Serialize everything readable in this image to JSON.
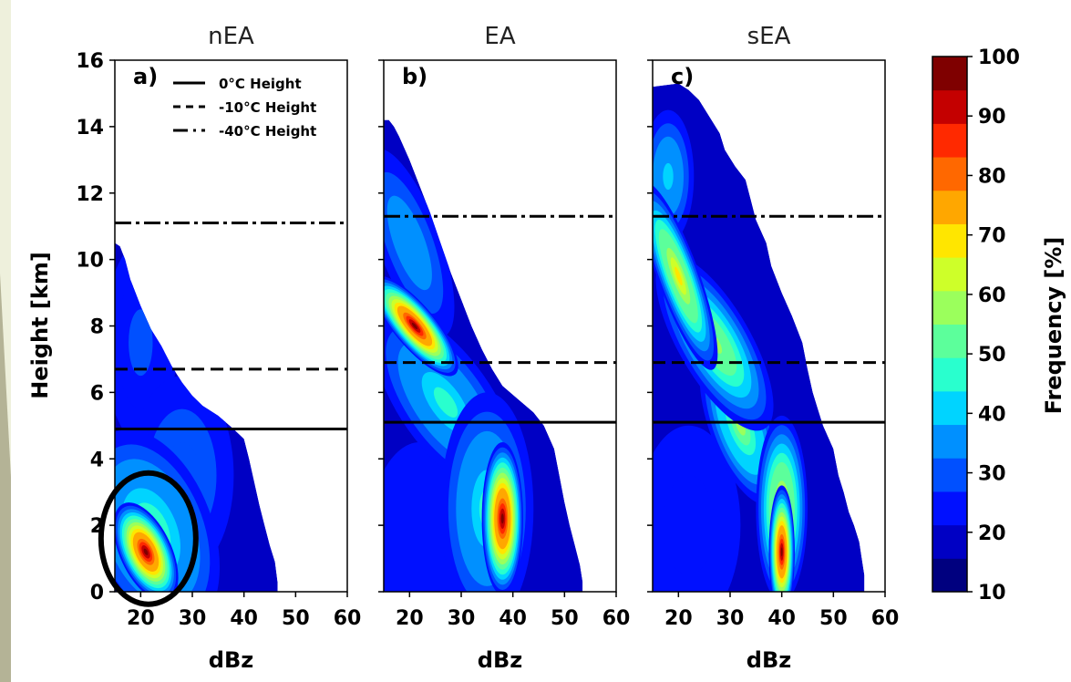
{
  "chart_data": {
    "type": "heatmap",
    "panels": [
      {
        "id": "nEA",
        "title": "nEA",
        "panel_label": "a)",
        "isotherms": [
          {
            "name": "0°C Height",
            "height_km": 4.9,
            "style": "solid"
          },
          {
            "name": "-10°C Height",
            "height_km": 6.7,
            "style": "dashed"
          },
          {
            "name": "-40°C Height",
            "height_km": 11.1,
            "style": "dashdot"
          }
        ],
        "envelope": [
          [
            15,
            10.5
          ],
          [
            16,
            10.4
          ],
          [
            17,
            10.0
          ],
          [
            18,
            9.4
          ],
          [
            20,
            8.6
          ],
          [
            22,
            7.9
          ],
          [
            24,
            7.4
          ],
          [
            26,
            6.8
          ],
          [
            28,
            6.3
          ],
          [
            30,
            5.9
          ],
          [
            32,
            5.6
          ],
          [
            35,
            5.3
          ],
          [
            38,
            4.9
          ],
          [
            40,
            4.6
          ],
          [
            41,
            4.0
          ],
          [
            42,
            3.3
          ],
          [
            43,
            2.6
          ],
          [
            44,
            2.0
          ],
          [
            45,
            1.4
          ],
          [
            46,
            0.9
          ],
          [
            46.5,
            0.3
          ],
          [
            46.5,
            0
          ],
          [
            15,
            0
          ]
        ],
        "cores": [
          {
            "dbz": 21,
            "height_km": 1.2,
            "dx": 5,
            "dy": 1.6,
            "peak": 100,
            "angle_deg": -25
          },
          {
            "dbz": 22,
            "height_km": 1.8,
            "dx": 12,
            "dy": 3.2,
            "peak": 50,
            "angle_deg": -20
          },
          {
            "dbz": 28,
            "height_km": 3.5,
            "dx": 10,
            "dy": 3.0,
            "peak": 30,
            "angle_deg": 0
          },
          {
            "dbz": 20,
            "height_km": 7.5,
            "dx": 7,
            "dy": 3.0,
            "peak": 25,
            "angle_deg": 0
          }
        ]
      },
      {
        "id": "EA",
        "title": "EA",
        "panel_label": "b)",
        "isotherms": [
          {
            "name": "0°C Height",
            "height_km": 5.1,
            "style": "solid"
          },
          {
            "name": "-10°C Height",
            "height_km": 6.9,
            "style": "dashed"
          },
          {
            "name": "-40°C Height",
            "height_km": 11.3,
            "style": "dashdot"
          }
        ],
        "envelope": [
          [
            15,
            14.2
          ],
          [
            16,
            14.2
          ],
          [
            17,
            14.0
          ],
          [
            18,
            13.7
          ],
          [
            20,
            13.0
          ],
          [
            22,
            12.2
          ],
          [
            24,
            11.4
          ],
          [
            26,
            10.5
          ],
          [
            28,
            9.6
          ],
          [
            30,
            8.8
          ],
          [
            32,
            8.0
          ],
          [
            34,
            7.3
          ],
          [
            36,
            6.7
          ],
          [
            38,
            6.2
          ],
          [
            41,
            5.8
          ],
          [
            44,
            5.4
          ],
          [
            46,
            5.0
          ],
          [
            48,
            4.3
          ],
          [
            49,
            3.5
          ],
          [
            50,
            2.7
          ],
          [
            51,
            2.0
          ],
          [
            52,
            1.4
          ],
          [
            53,
            0.8
          ],
          [
            53.5,
            0.3
          ],
          [
            53.5,
            0
          ],
          [
            15,
            0
          ]
        ],
        "cores": [
          {
            "dbz": 21,
            "height_km": 8.0,
            "dx": 4,
            "dy": 1.9,
            "peak": 100,
            "angle_deg": -40
          },
          {
            "dbz": 38,
            "height_km": 2.2,
            "dx": 4,
            "dy": 2.3,
            "peak": 100,
            "angle_deg": 0
          },
          {
            "dbz": 27,
            "height_km": 5.7,
            "dx": 9,
            "dy": 3.2,
            "peak": 45,
            "angle_deg": -35
          },
          {
            "dbz": 35,
            "height_km": 2.5,
            "dx": 9,
            "dy": 3.5,
            "peak": 45,
            "angle_deg": 0
          },
          {
            "dbz": 20,
            "height_km": 10.5,
            "dx": 6,
            "dy": 3.0,
            "peak": 35,
            "angle_deg": -20
          },
          {
            "dbz": 22,
            "height_km": 1.5,
            "dx": 10,
            "dy": 3.0,
            "peak": 20,
            "angle_deg": 0
          }
        ]
      },
      {
        "id": "sEA",
        "title": "sEA",
        "panel_label": "c)",
        "isotherms": [
          {
            "name": "0°C Height",
            "height_km": 5.1,
            "style": "solid"
          },
          {
            "name": "-10°C Height",
            "height_km": 6.9,
            "style": "dashed"
          },
          {
            "name": "-40°C Height",
            "height_km": 11.3,
            "style": "dashdot"
          }
        ],
        "envelope": [
          [
            15,
            15.2
          ],
          [
            20,
            15.3
          ],
          [
            22,
            15.1
          ],
          [
            24,
            14.8
          ],
          [
            26,
            14.3
          ],
          [
            28,
            13.8
          ],
          [
            29,
            13.3
          ],
          [
            31,
            12.8
          ],
          [
            33,
            12.4
          ],
          [
            34,
            11.8
          ],
          [
            35,
            11.2
          ],
          [
            37,
            10.5
          ],
          [
            38,
            9.8
          ],
          [
            40,
            9.0
          ],
          [
            42,
            8.3
          ],
          [
            44,
            7.5
          ],
          [
            45,
            6.7
          ],
          [
            46,
            6.0
          ],
          [
            47,
            5.5
          ],
          [
            48,
            5.0
          ],
          [
            50,
            4.3
          ],
          [
            51,
            3.5
          ],
          [
            52,
            3.0
          ],
          [
            53,
            2.4
          ],
          [
            54,
            2.0
          ],
          [
            55,
            1.5
          ],
          [
            55.5,
            1.0
          ],
          [
            56,
            0.5
          ],
          [
            56,
            0
          ],
          [
            15,
            0
          ]
        ],
        "cores": [
          {
            "dbz": 40,
            "height_km": 1.2,
            "dx": 2.5,
            "dy": 2.0,
            "peak": 100,
            "angle_deg": 0
          },
          {
            "dbz": 40,
            "height_km": 2.5,
            "dx": 5,
            "dy": 2.8,
            "peak": 70,
            "angle_deg": 0
          },
          {
            "dbz": 20,
            "height_km": 9.5,
            "dx": 4,
            "dy": 3.0,
            "peak": 70,
            "angle_deg": -20
          },
          {
            "dbz": 27,
            "height_km": 7.5,
            "dx": 7,
            "dy": 3.0,
            "peak": 60,
            "angle_deg": -30
          },
          {
            "dbz": 32,
            "height_km": 5.0,
            "dx": 6,
            "dy": 2.5,
            "peak": 55,
            "angle_deg": -20
          },
          {
            "dbz": 18,
            "height_km": 12.5,
            "dx": 5,
            "dy": 2.0,
            "peak": 40,
            "angle_deg": 0
          },
          {
            "dbz": 22,
            "height_km": 2.0,
            "dx": 10,
            "dy": 3.0,
            "peak": 20,
            "angle_deg": 0
          }
        ]
      }
    ],
    "xlabel": "dBz",
    "xlim": [
      15,
      60
    ],
    "xticks": [
      20,
      30,
      40,
      50,
      60
    ],
    "ylabel": "Height [km]",
    "ylim": [
      0,
      16
    ],
    "yticks": [
      0,
      2,
      4,
      6,
      8,
      10,
      12,
      14,
      16
    ],
    "legend": {
      "placement": "top-left of panel a",
      "entries": [
        {
          "label": "0°C Height",
          "style": "solid"
        },
        {
          "label": "-10°C Height",
          "style": "dashed"
        },
        {
          "label": "-40°C Height",
          "style": "dashdot"
        }
      ]
    },
    "colorbar": {
      "label": "Frequency [%]",
      "min": 10,
      "max": 100,
      "ticks": [
        10,
        20,
        30,
        40,
        50,
        60,
        70,
        80,
        90,
        100
      ],
      "colors": [
        "#00007f",
        "#0000c4",
        "#0010ff",
        "#0050ff",
        "#0090ff",
        "#00d4ff",
        "#29ffce",
        "#5cff9b",
        "#9bff5c",
        "#ceff29",
        "#ffe600",
        "#ffa700",
        "#ff6800",
        "#ff2900",
        "#c40000",
        "#7f0000"
      ]
    },
    "annotation": {
      "shape": "ellipse",
      "panel": "nEA",
      "dbz": 21.5,
      "height_km": 1.6
    }
  }
}
